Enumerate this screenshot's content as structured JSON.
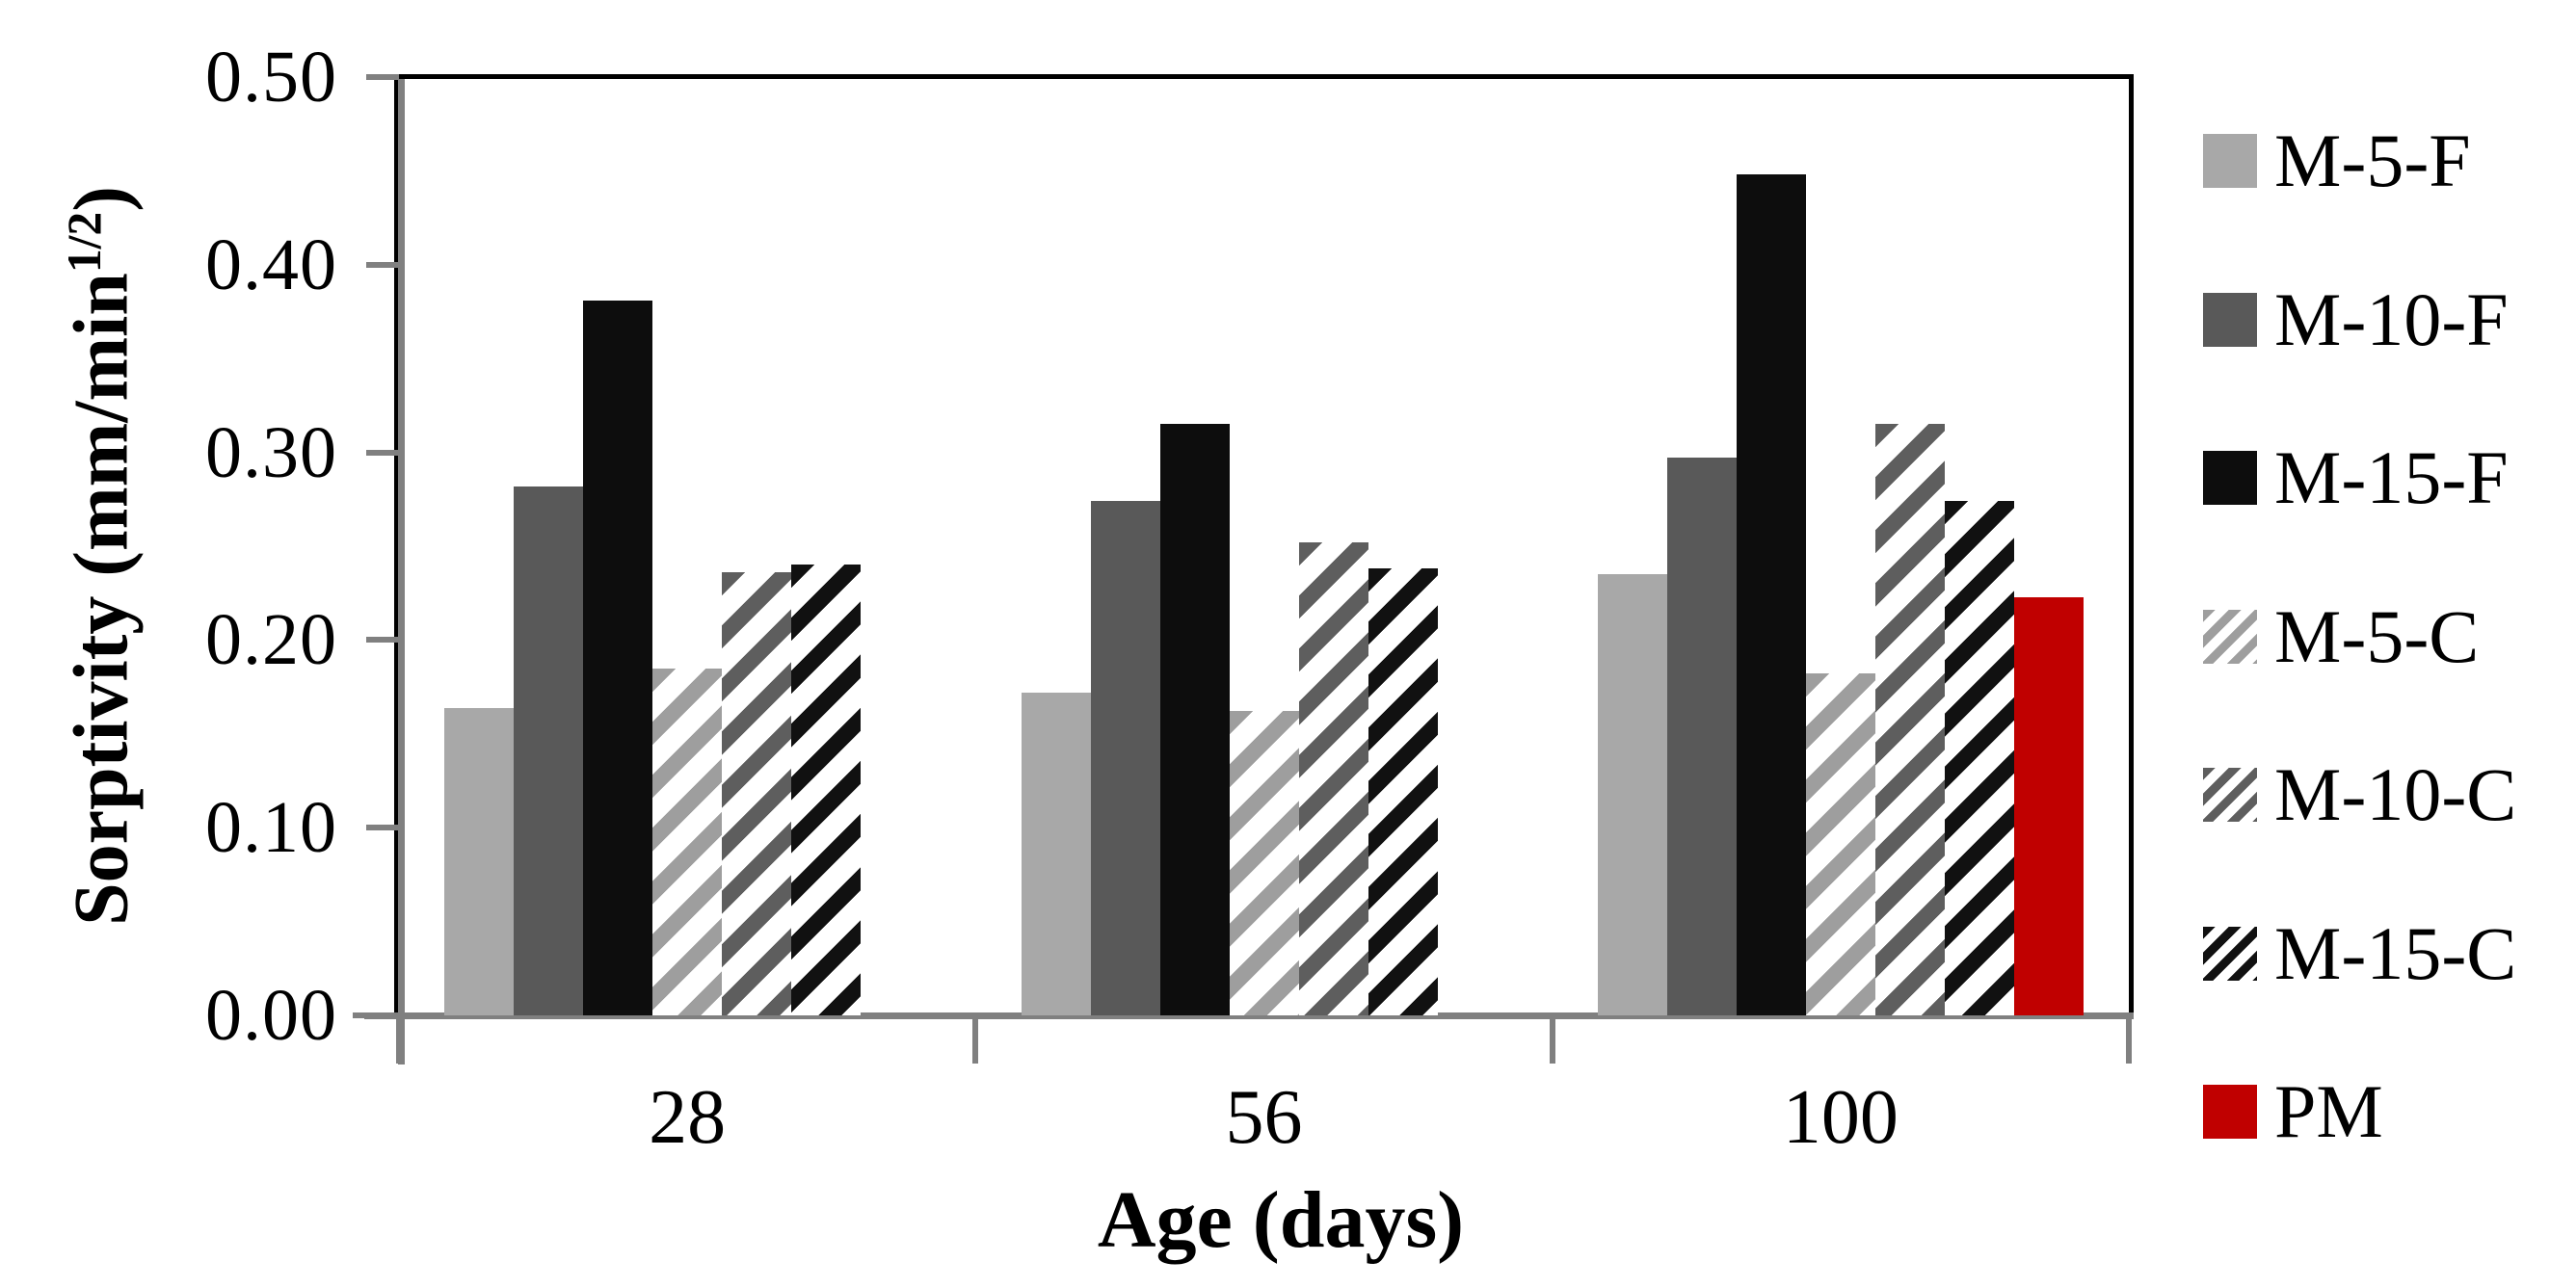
{
  "figure": {
    "y_axis_label": {
      "prefix": "Sorptivity (mm/min",
      "sup": "1/2",
      "suffix": ")"
    },
    "x_axis_label": "Age (days)",
    "axis_color": "#808080",
    "background": "#FFFFFF",
    "plot_border_color": "#000000"
  },
  "chart_data": {
    "type": "bar",
    "title": "",
    "xlabel": "Age (days)",
    "ylabel": "Sorptivity (mm/min^1/2)",
    "ylim": [
      0,
      0.5
    ],
    "y_tick_labels": [
      "0.00",
      "0.10",
      "0.20",
      "0.30",
      "0.40",
      "0.50"
    ],
    "grid": false,
    "legend_position": "right",
    "categories": [
      "28",
      "56",
      "100"
    ],
    "series": [
      {
        "name": "M-5-F",
        "style": "solid",
        "color": "#A8A8A8",
        "values": [
          0.164,
          0.172,
          0.235
        ]
      },
      {
        "name": "M-10-F",
        "style": "solid",
        "color": "#595959",
        "values": [
          0.282,
          0.274,
          0.297
        ]
      },
      {
        "name": "M-15-F",
        "style": "solid",
        "color": "#0D0D0D",
        "values": [
          0.381,
          0.315,
          0.448
        ]
      },
      {
        "name": "M-5-C",
        "style": "hatch",
        "color": "#9E9E9E",
        "values": [
          0.185,
          0.162,
          0.182
        ]
      },
      {
        "name": "M-10-C",
        "style": "hatch",
        "color": "#5E5E5E",
        "values": [
          0.236,
          0.252,
          0.315
        ]
      },
      {
        "name": "M-15-C",
        "style": "hatch",
        "color": "#111111",
        "values": [
          0.24,
          0.238,
          0.274
        ]
      },
      {
        "name": "PM",
        "style": "solid",
        "color": "#C00000",
        "values": [
          null,
          null,
          0.223
        ]
      }
    ]
  }
}
